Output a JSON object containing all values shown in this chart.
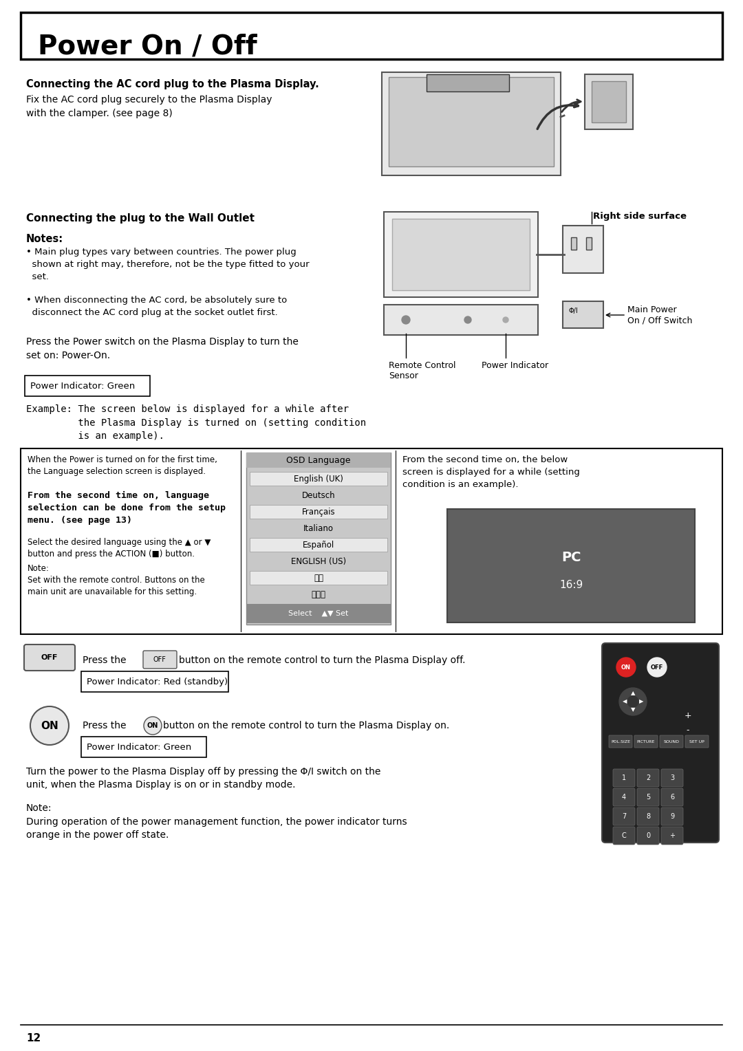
{
  "title": "Power On / Off",
  "bg_color": "#ffffff",
  "page_number": "12",
  "section1_heading": "Connecting the AC cord plug to the Plasma Display.",
  "section1_text": "Fix the AC cord plug securely to the Plasma Display\nwith the clamper. (see page 8)",
  "section2_heading": "Connecting the plug to the Wall Outlet",
  "notes_heading": "Notes:",
  "notes": [
    "Main plug types vary between countries. The power plug shown at right may, therefore, not be the type fitted to your set.",
    "When disconnecting the AC cord, be absolutely sure to disconnect the AC cord plug at the socket outlet first."
  ],
  "press_text": "Press the Power switch on the Plasma Display to turn the\nset on: Power-On.",
  "power_green_box": "Power Indicator: Green",
  "example_text": "Example: The screen below is displayed for a while after\n         the Plasma Display is turned on (setting condition\n         is an example).",
  "right_side_label": "Right side surface",
  "main_power_label": "Main Power\nOn / Off Switch",
  "remote_label": "Remote Control\nSensor",
  "power_ind_label": "Power Indicator",
  "inner_box": {
    "col1_text1": "When the Power is turned on for the first time,\nthe Language selection screen is displayed.",
    "col1_text2": "From the second time on, language\nselection can be done from the setup\nmenu. (see page 13)",
    "col1_text3": "Select the desired language using the ▲ or ▼\nbutton and press the ACTION (■) button.",
    "col1_note": "Note:\nSet with the remote control. Buttons on the\nmain unit are unavailable for this setting.",
    "col2_title": "OSD Language",
    "col2_items": [
      "English (UK)",
      "Deutsch",
      "Français",
      "Italiano",
      "Español",
      "ENGLISH (US)",
      "中文",
      "日本語"
    ],
    "col2_bottom": "Select    ▲▼ Set",
    "col3_text": "From the second time on, the below\nscreen is displayed for a while (setting\ncondition is an example).",
    "col3_screen": "PC\n16:9"
  },
  "off_text": "Press the        button on the remote control to turn the Plasma Display off.",
  "off_indicator": "Power Indicator: Red (standby)",
  "on_text": "Press the        button on the remote control to turn the Plasma Display on.",
  "on_indicator": "Power Indicator: Green",
  "final_text": "Turn the power to the Plasma Display off by pressing the Φ/I switch on the\nunit, when the Plasma Display is on or in standby mode.",
  "final_note": "Note:\nDuring operation of the power management function, the power indicator turns\norange in the power off state."
}
